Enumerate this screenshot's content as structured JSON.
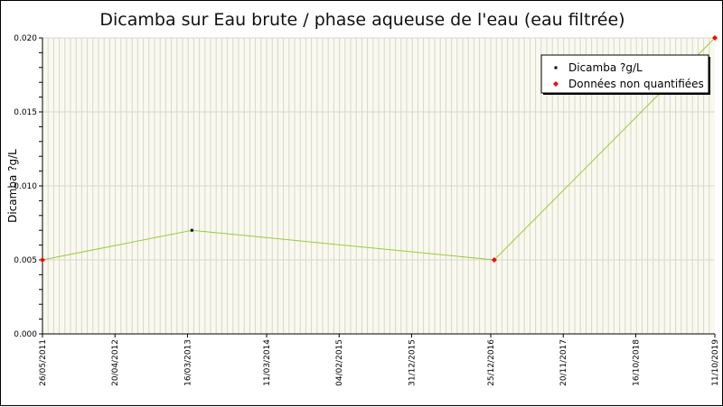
{
  "chart_data": {
    "type": "line",
    "title": "Dicamba sur Eau brute / phase aqueuse de l'eau (eau filtrée)",
    "xlabel": "",
    "ylabel": "Dicamba ?g/L",
    "xlim": [
      "2011-05-26",
      "2019-10-11"
    ],
    "ylim": [
      0,
      0.02
    ],
    "x_ticks": [
      "26/05/2011",
      "20/04/2012",
      "16/03/2013",
      "11/03/2014",
      "04/02/2015",
      "31/12/2015",
      "25/12/2016",
      "20/11/2017",
      "16/10/2018",
      "11/10/2019"
    ],
    "y_ticks": [
      "0.000",
      "0.005",
      "0.010",
      "0.015",
      "0.020"
    ],
    "grid": true,
    "legend_position": "top-right",
    "colors": {
      "background": "#f9f9ef",
      "grid": "#d7d7cc",
      "line": "#9acd32",
      "quantified_marker": "#000000",
      "non_quantified_marker": "#ff0000"
    },
    "series": [
      {
        "name": "Dicamba ?g/L",
        "x": [
          "2011-05-26",
          "2013-04-05",
          "2017-01-10",
          "2019-10-11"
        ],
        "values": [
          0.005,
          0.007,
          0.005,
          0.02
        ],
        "non_quantified": [
          true,
          false,
          true,
          true
        ]
      }
    ],
    "legend": [
      {
        "label": "Dicamba ?g/L",
        "marker": "quantified"
      },
      {
        "label": "Données non quantifiées",
        "marker": "non_quantified"
      }
    ]
  }
}
